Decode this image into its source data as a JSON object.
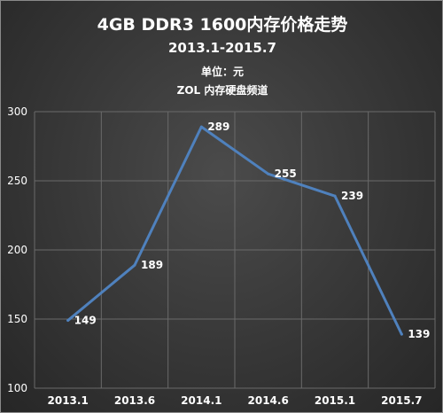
{
  "title": "4GB DDR3 1600内存价格走势",
  "subtitle": "2013.1-2015.7",
  "unit_label": "单位：元",
  "source_label": "ZOL 内存硬盘频道",
  "colors": {
    "background": "#3a3a3a",
    "line": "#4f81bd",
    "grid": "#6a6a6a",
    "text": "#ffffff"
  },
  "chart_data": {
    "type": "line",
    "title": "4GB DDR3 1600内存价格走势",
    "subtitle": "2013.1-2015.7",
    "categories": [
      "2013.1",
      "2013.6",
      "2014.1",
      "2014.6",
      "2015.1",
      "2015.7"
    ],
    "series": [
      {
        "values": [
          149,
          189,
          289,
          255,
          239,
          139
        ]
      }
    ],
    "ylim": [
      100,
      300
    ],
    "yticks": [
      100,
      150,
      200,
      250,
      300
    ],
    "grid": true,
    "data_labels": true,
    "legend": "none"
  }
}
